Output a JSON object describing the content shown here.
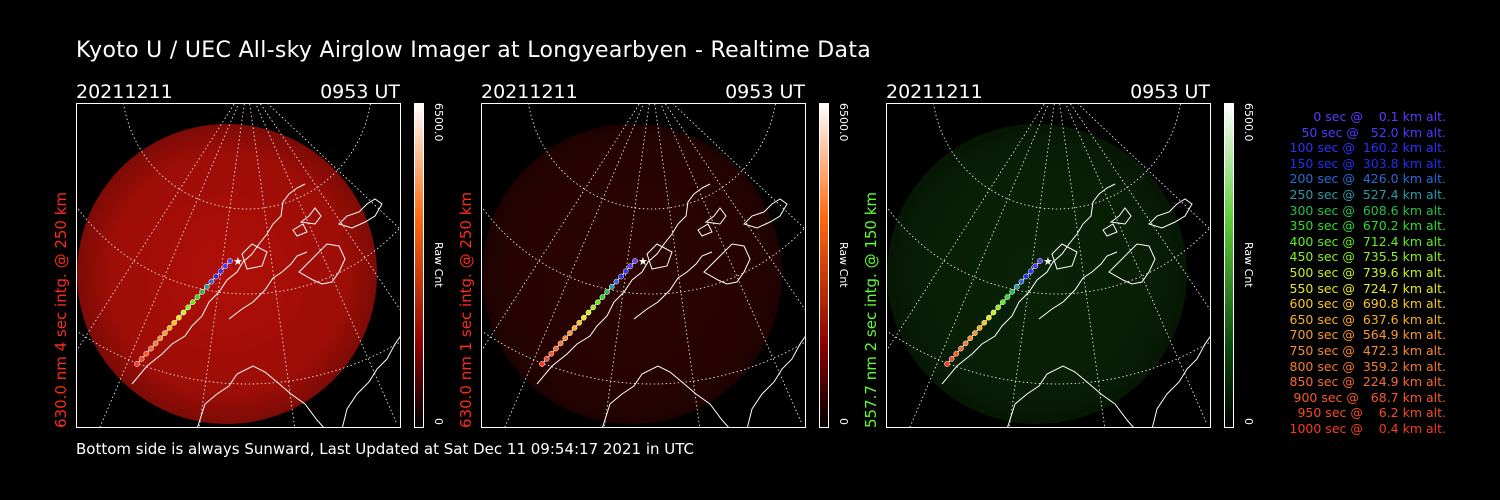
{
  "title": "Kyoto U / UEC All-sky Airglow Imager at Longyearbyen - Realtime Data",
  "footer": "Bottom side is always Sunward, Last Updated at Sat Dec 11 09:54:17 2021 in UTC",
  "panels": [
    {
      "date": "20211211",
      "time": "0953 UT",
      "side_label": "630.0 nm 4 sec intg. @ 250 km",
      "label_color": "#ff2a1a",
      "glow_color": "#b81008",
      "glow_level": 0.85,
      "cbar_max": "6500.0",
      "cbar_name": "Raw Cnt",
      "cbar_min": "0",
      "cbar_top": "#ffffff",
      "cbar_mid": "#ff6a10",
      "cbar_low": "#8a0000"
    },
    {
      "date": "20211211",
      "time": "0953 UT",
      "side_label": "630.0 nm 1 sec intg. @ 250 km",
      "label_color": "#ff2a1a",
      "glow_color": "#4a0603",
      "glow_level": 0.5,
      "cbar_max": "6500.0",
      "cbar_name": "Raw Cnt",
      "cbar_min": "0",
      "cbar_top": "#ffffff",
      "cbar_mid": "#ff6a10",
      "cbar_low": "#8a0000"
    },
    {
      "date": "20211211",
      "time": "0953 UT",
      "side_label": "557.7 nm 2 sec intg. @ 150 km",
      "label_color": "#5cff30",
      "glow_color": "#0f3a0a",
      "glow_level": 0.5,
      "cbar_max": "6500.0",
      "cbar_name": "Raw Cnt",
      "cbar_min": "0",
      "cbar_top": "#ffffff",
      "cbar_mid": "#5ecf3a",
      "cbar_low": "#0b4a0b"
    }
  ],
  "legend": [
    {
      "text": "   0 sec @    0.1 km alt.",
      "color": "#5a3cff"
    },
    {
      "text": "  50 sec @   52.0 km alt.",
      "color": "#4a3cff"
    },
    {
      "text": " 100 sec @  160.2 km alt.",
      "color": "#3030ff"
    },
    {
      "text": " 150 sec @  303.8 km alt.",
      "color": "#2030f0"
    },
    {
      "text": " 200 sec @  426.0 km alt.",
      "color": "#2a6ad8"
    },
    {
      "text": " 250 sec @  527.4 km alt.",
      "color": "#2a9aa8"
    },
    {
      "text": " 300 sec @  608.6 km alt.",
      "color": "#22c24a"
    },
    {
      "text": " 350 sec @  670.2 km alt.",
      "color": "#30dc28"
    },
    {
      "text": " 400 sec @  712.4 km alt.",
      "color": "#60ee20"
    },
    {
      "text": " 450 sec @  735.5 km alt.",
      "color": "#90f020"
    },
    {
      "text": " 500 sec @  739.6 km alt.",
      "color": "#c8f020"
    },
    {
      "text": " 550 sec @  724.7 km alt.",
      "color": "#e8e820"
    },
    {
      "text": " 600 sec @  690.8 km alt.",
      "color": "#f8c820"
    },
    {
      "text": " 650 sec @  637.6 km alt.",
      "color": "#f8b020"
    },
    {
      "text": " 700 sec @  564.9 km alt.",
      "color": "#f89830"
    },
    {
      "text": " 750 sec @  472.3 km alt.",
      "color": "#f88a30"
    },
    {
      "text": " 800 sec @  359.2 km alt.",
      "color": "#f87a30"
    },
    {
      "text": " 850 sec @  224.9 km alt.",
      "color": "#f86a30"
    },
    {
      "text": " 900 sec @   68.7 km alt.",
      "color": "#f85a28"
    },
    {
      "text": " 950 sec @    6.2 km alt.",
      "color": "#f84a24"
    },
    {
      "text": "1000 sec @    0.4 km alt.",
      "color": "#f83a20"
    }
  ]
}
